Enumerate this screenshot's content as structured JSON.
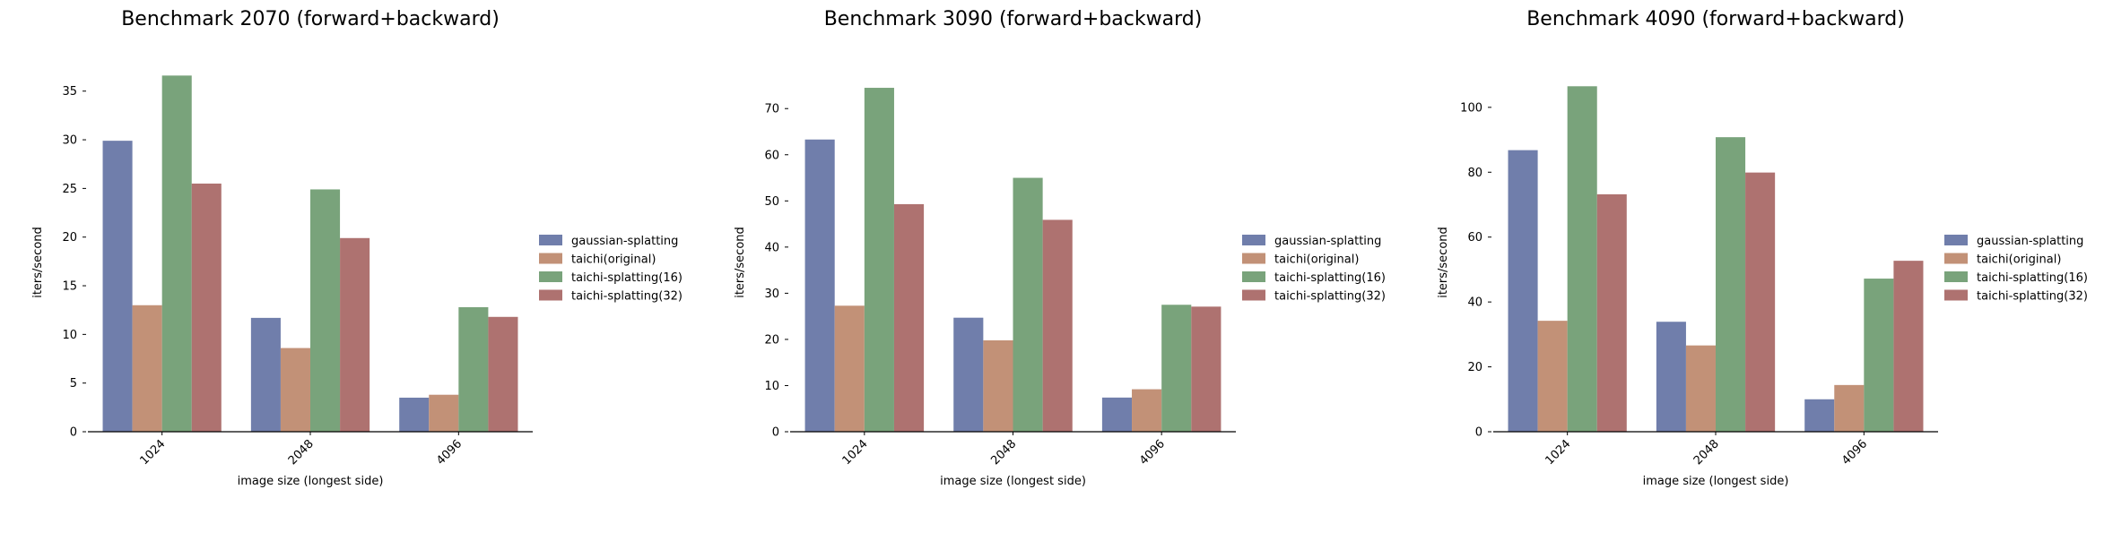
{
  "chart_data": [
    {
      "type": "bar",
      "title": "Benchmark 2070 (forward+backward)",
      "xlabel": "image size (longest side)",
      "ylabel": "iters/second",
      "categories": [
        "1024",
        "2048",
        "4096"
      ],
      "yticks": [
        0,
        5,
        10,
        15,
        20,
        25,
        30,
        35
      ],
      "ylim": [
        0,
        37
      ],
      "legend_position": "right",
      "series": [
        {
          "name": "gaussian-splatting",
          "color": "#707eab",
          "values": [
            29.9,
            11.7,
            3.5
          ]
        },
        {
          "name": "taichi(original)",
          "color": "#c29177",
          "values": [
            13.0,
            8.6,
            3.8
          ]
        },
        {
          "name": "taichi-splatting(16)",
          "color": "#79a37b",
          "values": [
            36.6,
            24.9,
            12.8
          ]
        },
        {
          "name": "taichi-splatting(32)",
          "color": "#ae7270",
          "values": [
            25.5,
            19.9,
            11.8
          ]
        }
      ]
    },
    {
      "type": "bar",
      "title": "Benchmark 3090 (forward+backward)",
      "xlabel": "image size (longest side)",
      "ylabel": "iters/second",
      "categories": [
        "1024",
        "2048",
        "4096"
      ],
      "yticks": [
        0,
        10,
        20,
        30,
        40,
        50,
        60,
        70
      ],
      "ylim": [
        0,
        78
      ],
      "legend_position": "right",
      "series": [
        {
          "name": "gaussian-splatting",
          "color": "#707eab",
          "values": [
            63.3,
            24.7,
            7.4
          ]
        },
        {
          "name": "taichi(original)",
          "color": "#c29177",
          "values": [
            27.3,
            19.8,
            9.2
          ]
        },
        {
          "name": "taichi-splatting(16)",
          "color": "#79a37b",
          "values": [
            74.5,
            55.0,
            27.5
          ]
        },
        {
          "name": "taichi-splatting(32)",
          "color": "#ae7270",
          "values": [
            49.3,
            45.9,
            27.1
          ]
        }
      ]
    },
    {
      "type": "bar",
      "title": "Benchmark 4090 (forward+backward)",
      "xlabel": "image size (longest side)",
      "ylabel": "iters/second",
      "categories": [
        "1024",
        "2048",
        "4096"
      ],
      "yticks": [
        0,
        20,
        40,
        60,
        80,
        100
      ],
      "ylim": [
        0,
        111
      ],
      "legend_position": "right",
      "series": [
        {
          "name": "gaussian-splatting",
          "color": "#707eab",
          "values": [
            86.8,
            33.9,
            10.0
          ]
        },
        {
          "name": "taichi(original)",
          "color": "#c29177",
          "values": [
            34.2,
            26.6,
            14.4
          ]
        },
        {
          "name": "taichi-splatting(16)",
          "color": "#79a37b",
          "values": [
            106.5,
            90.8,
            47.2
          ]
        },
        {
          "name": "taichi-splatting(32)",
          "color": "#ae7270",
          "values": [
            73.2,
            79.9,
            52.7
          ]
        }
      ]
    }
  ]
}
